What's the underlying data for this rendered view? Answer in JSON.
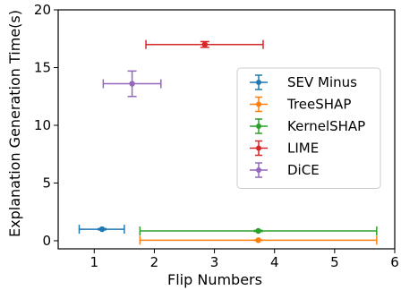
{
  "chart_data": {
    "type": "scatter",
    "title": "",
    "xlabel": "Flip Numbers",
    "ylabel": "Explanation Generation Time(s)",
    "xlim": [
      0.4,
      6.0
    ],
    "ylim": [
      -0.7,
      20
    ],
    "xticks": [
      "1",
      "2",
      "3",
      "4",
      "5",
      "6"
    ],
    "yticks": [
      "0",
      "5",
      "10",
      "15",
      "20"
    ],
    "grid": false,
    "legend_position": "center-right",
    "series": [
      {
        "name": "SEV Minus",
        "color": "#1f77b4",
        "x": 1.13,
        "y": 1.0,
        "xerr_low": 0.38,
        "xerr_high": 0.37,
        "yerr_low": 0.05,
        "yerr_high": 0.05
      },
      {
        "name": "TreeSHAP",
        "color": "#ff7f0e",
        "x": 3.73,
        "y": 0.05,
        "xerr_low": 1.97,
        "xerr_high": 1.97,
        "yerr_low": 0.02,
        "yerr_high": 0.02
      },
      {
        "name": "KernelSHAP",
        "color": "#2ca02c",
        "x": 3.73,
        "y": 0.85,
        "xerr_low": 1.97,
        "xerr_high": 1.97,
        "yerr_low": 0.05,
        "yerr_high": 0.05
      },
      {
        "name": "LIME",
        "color": "#d62728",
        "x": 2.84,
        "y": 17.0,
        "xerr_low": 0.98,
        "xerr_high": 0.97,
        "yerr_low": 0.25,
        "yerr_high": 0.25
      },
      {
        "name": "DiCE",
        "color": "#9467bd",
        "x": 1.63,
        "y": 13.6,
        "xerr_low": 0.48,
        "xerr_high": 0.48,
        "yerr_low": 1.1,
        "yerr_high": 1.1
      }
    ]
  }
}
